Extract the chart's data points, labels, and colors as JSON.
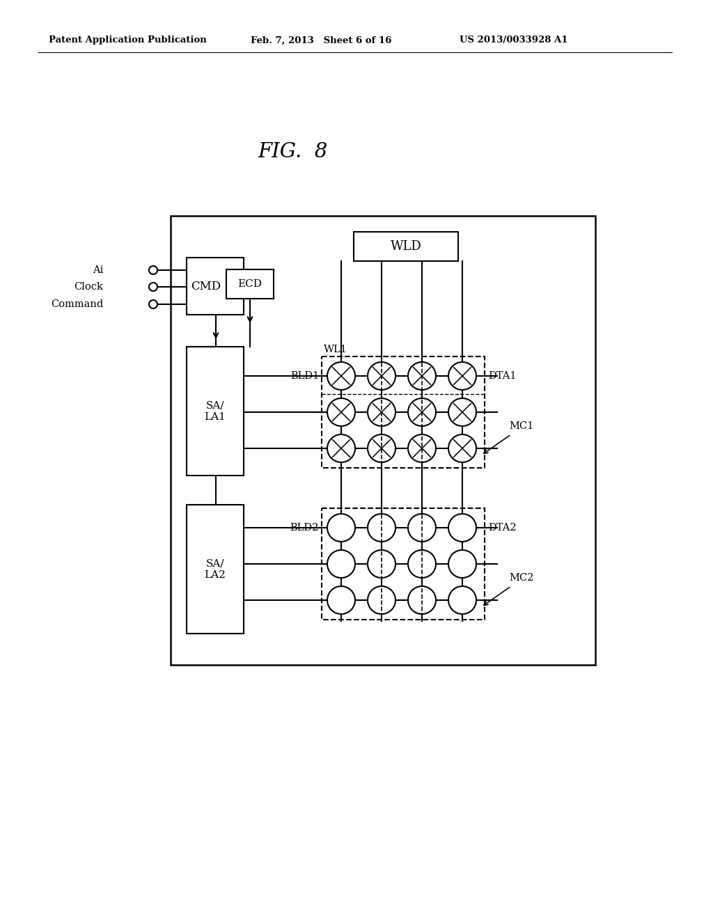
{
  "bg_color": "#ffffff",
  "header_left": "Patent Application Publication",
  "header_mid": "Feb. 7, 2013   Sheet 6 of 16",
  "header_right": "US 2013/0033928 A1",
  "fig_label": "FIG.  8",
  "inputs": [
    "Ai",
    "Clock",
    "Command"
  ],
  "cmd_label": "CMD",
  "ecd_label": "ECD",
  "wld_label": "WLD",
  "wl1_label": "WL1",
  "bld1_label": "BLD1",
  "bld2_label": "BLD2",
  "dta1_label": "DTA1",
  "dta2_label": "DTA2",
  "sa_la1_label": "SA/\nLA1",
  "sa_la2_label": "SA/\nLA2",
  "mc1_label": "MC1",
  "mc2_label": "MC2"
}
